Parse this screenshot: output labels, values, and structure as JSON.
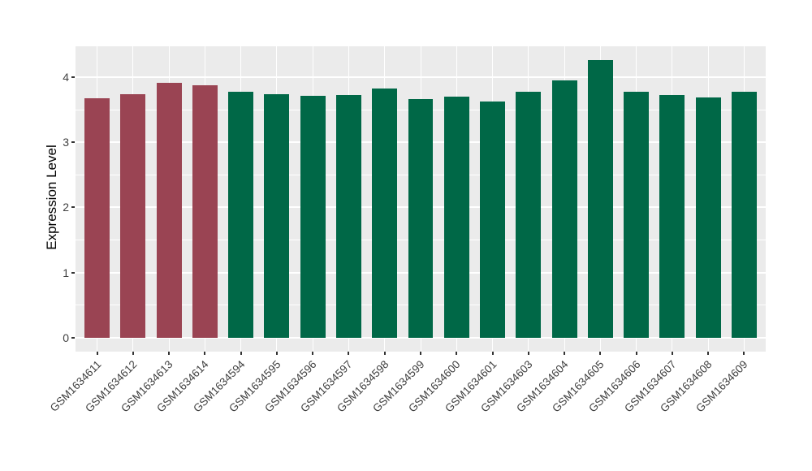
{
  "figure": {
    "background": "#FFFFFF",
    "panel_background": "#EBEBEB",
    "gridline_color": "#FFFFFF",
    "axis_text_color": "#404040",
    "tick_mark_color": "#333333",
    "highlight_bar_color": "#9A4453",
    "default_bar_color": "#006847"
  },
  "chart_data": {
    "type": "bar",
    "title": "",
    "xlabel": "",
    "ylabel": "Expression Level",
    "legend": "none",
    "grid": "on",
    "x_label_rotation": 45,
    "categories": [
      "GSM1634611",
      "GSM1634612",
      "GSM1634613",
      "GSM1634614",
      "GSM1634594",
      "GSM1634595",
      "GSM1634596",
      "GSM1634597",
      "GSM1634598",
      "GSM1634599",
      "GSM1634600",
      "GSM1634601",
      "GSM1634603",
      "GSM1634604",
      "GSM1634605",
      "GSM1634606",
      "GSM1634607",
      "GSM1634608",
      "GSM1634609"
    ],
    "values": [
      3.67,
      3.74,
      3.91,
      3.87,
      3.77,
      3.74,
      3.71,
      3.72,
      3.82,
      3.66,
      3.7,
      3.63,
      3.77,
      3.95,
      4.26,
      3.77,
      3.72,
      3.69,
      3.77
    ],
    "bar_colors": [
      "#9A4453",
      "#9A4453",
      "#9A4453",
      "#9A4453",
      "#006847",
      "#006847",
      "#006847",
      "#006847",
      "#006847",
      "#006847",
      "#006847",
      "#006847",
      "#006847",
      "#006847",
      "#006847",
      "#006847",
      "#006847",
      "#006847",
      "#006847"
    ],
    "ylim": [
      -0.213,
      4.473
    ],
    "yticks": [
      0,
      1,
      2,
      3,
      4
    ],
    "ytick_minor": [
      0.5,
      1.5,
      2.5,
      3.5
    ]
  }
}
